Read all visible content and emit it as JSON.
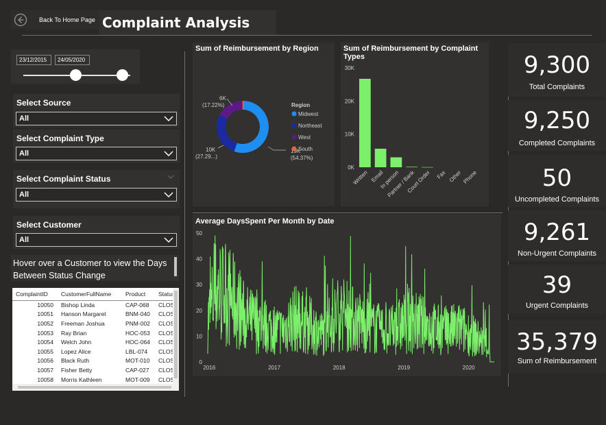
{
  "header": {
    "back_label": "Back To Home Page",
    "title": "Complaint Analysis"
  },
  "date_slicer": {
    "start": "23/12/2015",
    "end": "24/05/2020"
  },
  "slicers": [
    {
      "title": "Select Source",
      "value": "All"
    },
    {
      "title": "Select Complaint Type",
      "value": "All"
    },
    {
      "title": "Select Complaint Status",
      "value": "All"
    },
    {
      "title": "Select Customer",
      "value": "All"
    }
  ],
  "hover_note": "Hover over a Customer to view the Days Between Status Change",
  "table": {
    "columns": [
      "ComplaintID",
      "CustomerFullName",
      "Product",
      "Status"
    ],
    "rows": [
      [
        "10050",
        "Bishop Linda",
        "CAP-068",
        "CLOSED"
      ],
      [
        "10051",
        "Hanson Margaret",
        "BNM-040",
        "CLOSED"
      ],
      [
        "10052",
        "Freeman Joshua",
        "PNM-002",
        "CLOSED"
      ],
      [
        "10053",
        "Ray Brian",
        "HOC-053",
        "CLOSED"
      ],
      [
        "10054",
        "Welch John",
        "HOC-064",
        "CLOSED"
      ],
      [
        "10055",
        "Lopez Alice",
        "LBL-074",
        "CLOSED"
      ],
      [
        "10056",
        "Black Ruth",
        "MOT-010",
        "CLOSED"
      ],
      [
        "10057",
        "Fisher Betty",
        "CAP-027",
        "CLOSED"
      ],
      [
        "10058",
        "Morris Kathleen",
        "MOT-009",
        "CLOSED"
      ]
    ]
  },
  "kpis": [
    {
      "value": "9,300",
      "label": "Total Complaints"
    },
    {
      "value": "9,250",
      "label": "Completed Complaints"
    },
    {
      "value": "50",
      "label": "Uncompleted Complaints"
    },
    {
      "value": "9,261",
      "label": "Non-Urgent Complaints"
    },
    {
      "value": "39",
      "label": "Urgent Complaints"
    },
    {
      "value": "35,379",
      "label": "Sum of Reimbursement"
    }
  ],
  "colors": {
    "accent_green": "#7cf06a",
    "midwest": "#1e8ff0",
    "northeast": "#1b2aa1",
    "west": "#5b1a84",
    "south": "#e8643c"
  },
  "chart_data": [
    {
      "type": "pie",
      "title": "Sum of Reimbursement by Region",
      "legend_title": "Region",
      "legend_position": "right",
      "categories": [
        "Midwest",
        "Northeast",
        "West",
        "South"
      ],
      "values": [
        19236,
        9656,
        6094,
        393
      ],
      "data_labels": [
        "19K\n(54.37%)",
        "10K\n(27.29...)",
        "6K\n(17.22%)",
        ""
      ]
    },
    {
      "type": "bar",
      "title": "Sum of Reimbursement by Complaint Types",
      "categories": [
        "Written",
        "Email",
        "In person",
        "Partner / Bank",
        "Court Order",
        "Fax",
        "Other",
        "Phone"
      ],
      "values": [
        26700,
        5600,
        3000,
        150,
        50,
        0,
        0,
        0
      ],
      "ylim": [
        0,
        30000
      ],
      "yticks": [
        "0K",
        "10K",
        "20K",
        "30K"
      ]
    },
    {
      "type": "line",
      "title": "Average DaysSpent Per Month by Date",
      "ylim": [
        0,
        50
      ],
      "yticks": [
        "0",
        "10",
        "20",
        "30",
        "40",
        "50"
      ],
      "xticks": [
        "2016",
        "2017",
        "2018",
        "2019",
        "2020"
      ],
      "x_range": [
        "2015-12-23",
        "2020-05-24"
      ],
      "trend": [
        {
          "t": 0.0,
          "y": 16
        },
        {
          "t": 0.03,
          "y": 28
        },
        {
          "t": 0.08,
          "y": 25
        },
        {
          "t": 0.13,
          "y": 17
        },
        {
          "t": 0.2,
          "y": 14
        },
        {
          "t": 0.26,
          "y": 12
        },
        {
          "t": 0.3,
          "y": 17
        },
        {
          "t": 0.36,
          "y": 14
        },
        {
          "t": 0.4,
          "y": 11
        },
        {
          "t": 0.46,
          "y": 19
        },
        {
          "t": 0.52,
          "y": 16
        },
        {
          "t": 0.58,
          "y": 13
        },
        {
          "t": 0.64,
          "y": 12
        },
        {
          "t": 0.7,
          "y": 16
        },
        {
          "t": 0.76,
          "y": 14
        },
        {
          "t": 0.82,
          "y": 12
        },
        {
          "t": 0.88,
          "y": 13
        },
        {
          "t": 0.93,
          "y": 10
        },
        {
          "t": 0.97,
          "y": 7
        },
        {
          "t": 1.0,
          "y": 0
        }
      ]
    }
  ]
}
